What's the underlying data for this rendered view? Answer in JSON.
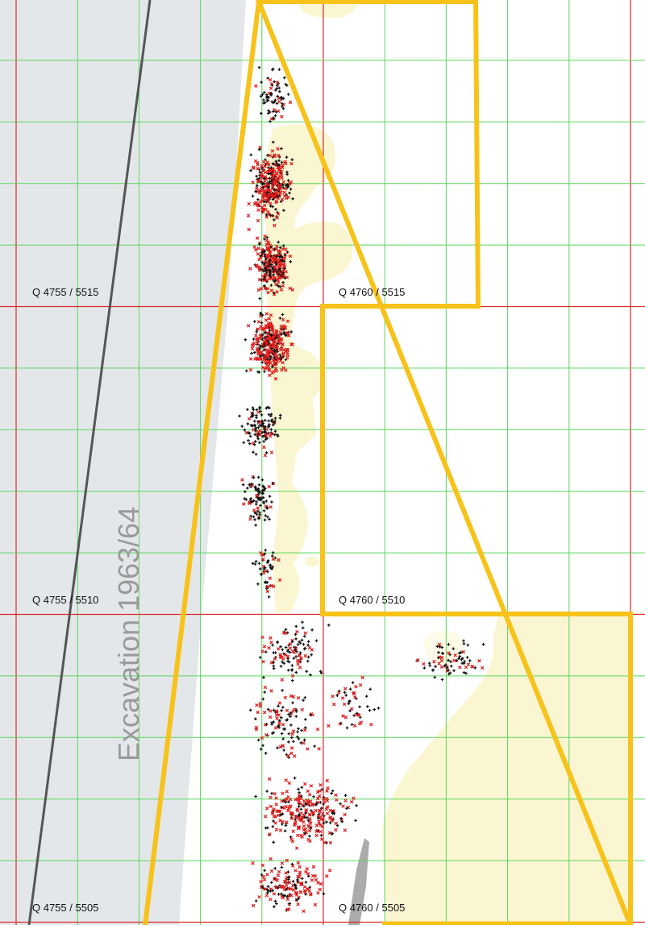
{
  "title": "",
  "colors": {
    "excavated_area": "#e4e7ea",
    "sediment_patch": "#fbf6d2",
    "minor_grid": "#59d659",
    "major_grid": "#d92b2b",
    "boundary": "#f7c21a",
    "old_trench_line": "#555555",
    "finds_black": "#111111",
    "finds_red": "#e01919",
    "grey_feature": "#a9abad"
  },
  "legend_symbols": {
    "black_finds": "plus-marker",
    "red_finds": "x-marker"
  },
  "excavation_label": "Excavation 1963/64",
  "grid_labels": [
    {
      "id": "q-4755-5515",
      "text": "Q 4755 / 5515"
    },
    {
      "id": "q-4760-5515",
      "text": "Q 4760 / 5515"
    },
    {
      "id": "q-4755-5510",
      "text": "Q 4755 / 5510"
    },
    {
      "id": "q-4760-5510",
      "text": "Q 4760 / 5510"
    },
    {
      "id": "q-4755-5505",
      "text": "Q 4755 / 5505"
    },
    {
      "id": "q-4760-5505",
      "text": "Q 4760 / 5505"
    }
  ]
}
